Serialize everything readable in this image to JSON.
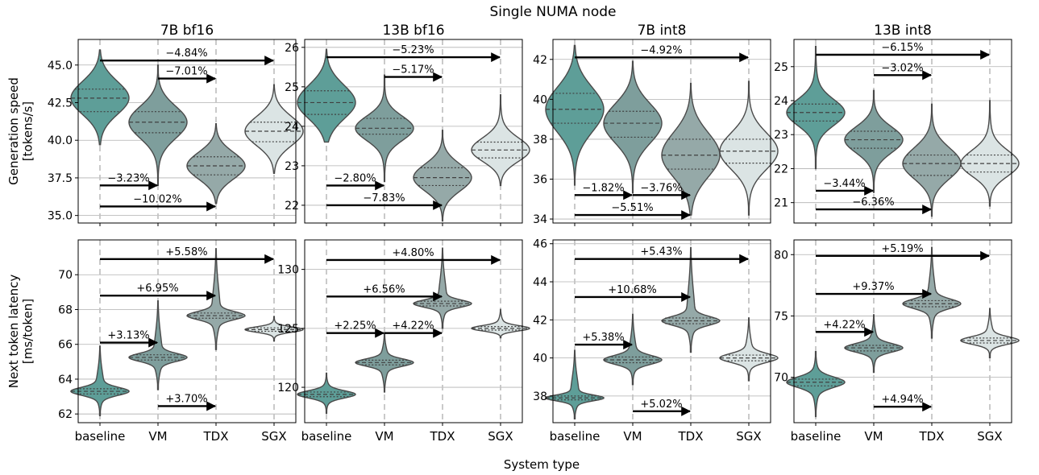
{
  "figure": {
    "suptitle": "Single NUMA node",
    "xlabel": "System type",
    "row_ylabels": [
      [
        "Generation speed",
        "[tokens/s]"
      ],
      [
        "Next token latency",
        "[ms/token]"
      ]
    ],
    "categories": [
      "baseline",
      "VM",
      "TDX",
      "SGX"
    ],
    "colors": [
      "#5e9e98",
      "#7e9e9c",
      "#95a9a8",
      "#dbe4e4"
    ]
  },
  "chart_data": [
    {
      "type": "violin",
      "title": "7B bf16",
      "row": 0,
      "categories": [
        "baseline",
        "VM",
        "TDX",
        "SGX"
      ],
      "ylim": [
        34.5,
        46.7
      ],
      "yticks": [
        35.0,
        37.5,
        40.0,
        42.5,
        45.0
      ],
      "ytick_labels": [
        "35.0",
        "37.5",
        "40.0",
        "42.5",
        "45.0"
      ],
      "median": [
        42.8,
        41.2,
        38.3,
        40.6
      ],
      "q1": [
        41.9,
        40.5,
        37.7,
        39.9
      ],
      "q3": [
        43.4,
        41.9,
        38.9,
        41.2
      ],
      "min": [
        39.7,
        37.0,
        35.8,
        37.8
      ],
      "max": [
        46.0,
        45.0,
        41.1,
        43.7
      ],
      "grid": true,
      "annotations": [
        {
          "text": "−4.84%",
          "from": 0,
          "to": 3,
          "y": 45.3
        },
        {
          "text": "−7.01%",
          "from": 1,
          "to": 2,
          "y": 44.1
        },
        {
          "text": "−3.23%",
          "from": 0,
          "to": 1,
          "y": 37.0
        },
        {
          "text": "−10.02%",
          "from": 0,
          "to": 2,
          "y": 35.6
        }
      ]
    },
    {
      "type": "violin",
      "title": "13B bf16",
      "row": 0,
      "categories": [
        "baseline",
        "VM",
        "TDX",
        "SGX"
      ],
      "ylim": [
        21.55,
        26.2
      ],
      "yticks": [
        22,
        23,
        24,
        25,
        26
      ],
      "ytick_labels": [
        "22",
        "23",
        "24",
        "25",
        "26"
      ],
      "median": [
        24.6,
        23.95,
        22.7,
        23.4
      ],
      "q1": [
        24.3,
        23.8,
        22.5,
        23.2
      ],
      "q3": [
        24.9,
        24.2,
        22.95,
        23.6
      ],
      "min": [
        23.6,
        22.6,
        21.6,
        22.5
      ],
      "max": [
        25.95,
        25.3,
        23.9,
        24.8
      ],
      "grid": true,
      "annotations": [
        {
          "text": "−5.23%",
          "from": 0,
          "to": 3,
          "y": 25.75
        },
        {
          "text": "−5.17%",
          "from": 1,
          "to": 2,
          "y": 25.25
        },
        {
          "text": "−2.80%",
          "from": 0,
          "to": 1,
          "y": 22.5
        },
        {
          "text": "−7.83%",
          "from": 0,
          "to": 2,
          "y": 22.0
        }
      ]
    },
    {
      "type": "violin",
      "title": "7B int8",
      "row": 0,
      "categories": [
        "baseline",
        "VM",
        "TDX",
        "SGX"
      ],
      "ylim": [
        33.8,
        43.0
      ],
      "yticks": [
        34,
        36,
        38,
        40,
        42
      ],
      "ytick_labels": [
        "34",
        "36",
        "38",
        "40",
        "42"
      ],
      "median": [
        39.5,
        38.8,
        37.2,
        37.4
      ],
      "q1": [
        38.8,
        38.1,
        36.5,
        36.8
      ],
      "q3": [
        40.3,
        39.4,
        38.0,
        38.0
      ],
      "min": [
        35.7,
        35.3,
        34.2,
        34.2
      ],
      "max": [
        42.7,
        41.9,
        40.8,
        40.9
      ],
      "grid": true,
      "annotations": [
        {
          "text": "−4.92%",
          "from": 0,
          "to": 3,
          "y": 42.1
        },
        {
          "text": "−1.82%",
          "from": 0,
          "to": 1,
          "y": 35.2
        },
        {
          "text": "−3.76%",
          "from": 1,
          "to": 2,
          "y": 35.2
        },
        {
          "text": "−5.51%",
          "from": 0,
          "to": 2,
          "y": 34.2
        }
      ]
    },
    {
      "type": "violin",
      "title": "13B int8",
      "row": 0,
      "categories": [
        "baseline",
        "VM",
        "TDX",
        "SGX"
      ],
      "ylim": [
        20.4,
        25.8
      ],
      "yticks": [
        21,
        22,
        23,
        24,
        25
      ],
      "ytick_labels": [
        "21",
        "22",
        "23",
        "24",
        "25"
      ],
      "median": [
        23.65,
        22.85,
        22.15,
        22.15
      ],
      "q1": [
        23.4,
        22.6,
        21.8,
        21.9
      ],
      "q3": [
        23.9,
        23.1,
        22.4,
        22.4
      ],
      "min": [
        22.0,
        21.3,
        20.6,
        20.9
      ],
      "max": [
        25.6,
        24.3,
        23.9,
        24.0
      ],
      "grid": true,
      "annotations": [
        {
          "text": "−6.15%",
          "from": 0,
          "to": 3,
          "y": 25.35
        },
        {
          "text": "−3.02%",
          "from": 1,
          "to": 2,
          "y": 24.75
        },
        {
          "text": "−3.44%",
          "from": 0,
          "to": 1,
          "y": 21.35
        },
        {
          "text": "−6.36%",
          "from": 0,
          "to": 2,
          "y": 20.8
        }
      ]
    },
    {
      "type": "violin",
      "title": "",
      "row": 1,
      "categories": [
        "baseline",
        "VM",
        "TDX",
        "SGX"
      ],
      "ylim": [
        61.5,
        72.0
      ],
      "yticks": [
        62,
        64,
        66,
        68,
        70
      ],
      "ytick_labels": [
        "62",
        "64",
        "66",
        "68",
        "70"
      ],
      "median": [
        63.3,
        65.25,
        67.65,
        66.85
      ],
      "q1": [
        63.15,
        65.1,
        67.5,
        66.75
      ],
      "q3": [
        63.45,
        65.4,
        67.8,
        66.95
      ],
      "min": [
        61.9,
        63.4,
        65.7,
        66.2
      ],
      "max": [
        65.9,
        68.5,
        71.5,
        67.6
      ],
      "grid": true,
      "annotations": [
        {
          "text": "+5.58%",
          "from": 0,
          "to": 3,
          "y": 70.9
        },
        {
          "text": "+6.95%",
          "from": 0,
          "to": 2,
          "y": 68.8
        },
        {
          "text": "+3.13%",
          "from": 0,
          "to": 1,
          "y": 66.1
        },
        {
          "text": "+3.70%",
          "from": 1,
          "to": 2,
          "y": 62.45
        }
      ]
    },
    {
      "type": "violin",
      "title": "",
      "row": 1,
      "categories": [
        "baseline",
        "VM",
        "TDX",
        "SGX"
      ],
      "ylim": [
        117.0,
        132.5
      ],
      "yticks": [
        120,
        125,
        130
      ],
      "ytick_labels": [
        "120",
        "125",
        "130"
      ],
      "median": [
        119.4,
        122.1,
        127.1,
        125.0
      ],
      "q1": [
        119.2,
        121.9,
        126.9,
        124.85
      ],
      "q3": [
        119.6,
        122.3,
        127.3,
        125.15
      ],
      "min": [
        117.8,
        119.6,
        125.0,
        124.2
      ],
      "max": [
        121.2,
        124.6,
        131.8,
        126.6
      ],
      "grid": true,
      "annotations": [
        {
          "text": "+4.80%",
          "from": 0,
          "to": 3,
          "y": 130.8
        },
        {
          "text": "+6.56%",
          "from": 0,
          "to": 2,
          "y": 127.7
        },
        {
          "text": "+2.25%",
          "from": 0,
          "to": 1,
          "y": 124.6
        },
        {
          "text": "+4.22%",
          "from": 1,
          "to": 2,
          "y": 124.6
        }
      ]
    },
    {
      "type": "violin",
      "title": "",
      "row": 1,
      "categories": [
        "baseline",
        "VM",
        "TDX",
        "SGX"
      ],
      "ylim": [
        36.6,
        46.2
      ],
      "yticks": [
        38,
        40,
        42,
        44,
        46
      ],
      "ytick_labels": [
        "38",
        "40",
        "42",
        "44",
        "46"
      ],
      "median": [
        37.9,
        39.9,
        41.95,
        40.0
      ],
      "q1": [
        37.8,
        39.75,
        41.8,
        39.85
      ],
      "q3": [
        38.0,
        40.05,
        42.1,
        40.15
      ],
      "min": [
        36.8,
        38.6,
        40.3,
        38.8
      ],
      "max": [
        40.4,
        42.3,
        45.8,
        42.1
      ],
      "grid": true,
      "annotations": [
        {
          "text": "+5.43%",
          "from": 0,
          "to": 3,
          "y": 45.2
        },
        {
          "text": "+10.68%",
          "from": 0,
          "to": 2,
          "y": 43.2
        },
        {
          "text": "+5.38%",
          "from": 0,
          "to": 1,
          "y": 40.7
        },
        {
          "text": "+5.02%",
          "from": 1,
          "to": 2,
          "y": 37.2
        }
      ]
    },
    {
      "type": "violin",
      "title": "",
      "row": 1,
      "categories": [
        "baseline",
        "VM",
        "TDX",
        "SGX"
      ],
      "ylim": [
        66.3,
        81.2
      ],
      "yticks": [
        70,
        75,
        80
      ],
      "ytick_labels": [
        "70",
        "75",
        "80"
      ],
      "median": [
        69.6,
        72.4,
        76.0,
        73.0
      ],
      "q1": [
        69.3,
        72.15,
        75.75,
        72.8
      ],
      "q3": [
        69.85,
        72.6,
        76.25,
        73.2
      ],
      "min": [
        66.8,
        70.4,
        73.2,
        71.6
      ],
      "max": [
        72.1,
        75.1,
        80.6,
        75.6
      ],
      "grid": true,
      "annotations": [
        {
          "text": "+5.19%",
          "from": 0,
          "to": 3,
          "y": 79.9
        },
        {
          "text": "+9.37%",
          "from": 0,
          "to": 2,
          "y": 76.8
        },
        {
          "text": "+4.22%",
          "from": 0,
          "to": 1,
          "y": 73.7
        },
        {
          "text": "+4.94%",
          "from": 1,
          "to": 2,
          "y": 67.6
        }
      ]
    }
  ]
}
